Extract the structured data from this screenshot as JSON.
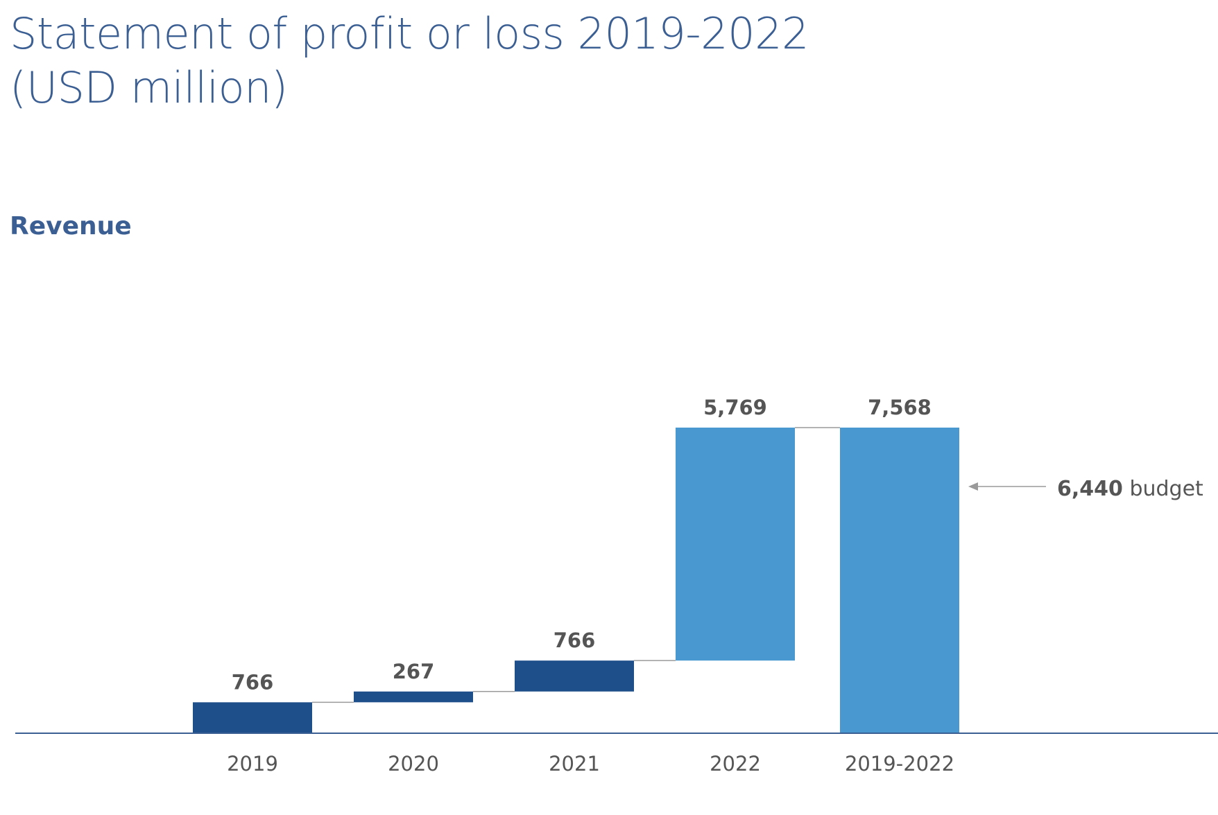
{
  "header": {
    "title_line1": "Statement of profit or loss 2019-2022",
    "title_line2": "(USD million)",
    "subtitle": "Revenue"
  },
  "colors": {
    "title": "#3c5f93",
    "annual_bar": "#1f4f8a",
    "total_bar": "#4a98d0",
    "axis": "#3c5f93",
    "connector": "#9a9a9a",
    "text": "#555555"
  },
  "chart_data": {
    "type": "waterfall",
    "title": "Statement of profit or loss 2019-2022 (USD million)",
    "subtitle": "Revenue",
    "categories": [
      "2019",
      "2020",
      "2021",
      "2022",
      "2019-2022"
    ],
    "values": [
      766,
      267,
      766,
      5769,
      7568
    ],
    "value_labels": [
      "766",
      "267",
      "766",
      "5,769",
      "7,568"
    ],
    "bar_kind": [
      "increment",
      "increment",
      "increment",
      "increment",
      "total"
    ],
    "bar_colors": [
      "#1f4f8a",
      "#1f4f8a",
      "#1f4f8a",
      "#4a98d0",
      "#4a98d0"
    ],
    "connectors": true,
    "annotation": {
      "value": 6440,
      "value_text": "6,440",
      "text": "budget",
      "target": "2019-2022"
    },
    "grid": false,
    "ylim": [
      0,
      7568
    ]
  }
}
